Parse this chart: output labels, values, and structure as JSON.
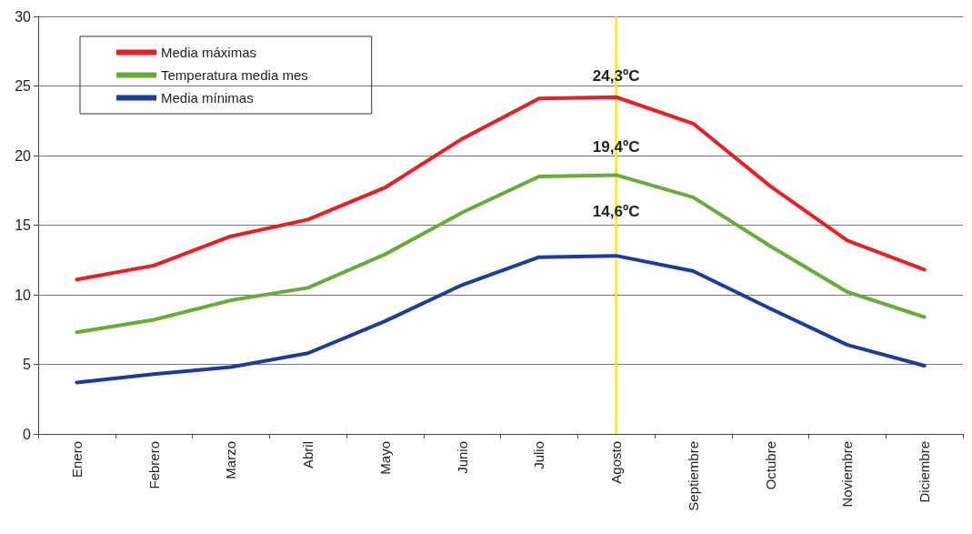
{
  "chart_data": {
    "type": "line",
    "categories": [
      "Enero",
      "Febrero",
      "Marzo",
      "Abril",
      "Mayo",
      "Junio",
      "Julio",
      "Agosto",
      "Septiembre",
      "Octubre",
      "Noviembre",
      "Diciembre"
    ],
    "series": [
      {
        "name": "Media máximas",
        "color": "#ee1c25",
        "values": [
          11.1,
          12.1,
          14.2,
          15.4,
          17.7,
          21.2,
          24.1,
          24.2,
          22.3,
          17.8,
          13.9,
          11.8
        ]
      },
      {
        "name": "Temperatura media mes",
        "color": "#6aaa3a",
        "values": [
          7.3,
          8.2,
          9.6,
          10.5,
          12.9,
          15.9,
          18.5,
          18.6,
          17.0,
          13.5,
          10.2,
          8.4
        ]
      },
      {
        "name": "Media mínimas",
        "color": "#1f3a9e",
        "values": [
          3.7,
          4.3,
          4.8,
          5.8,
          8.1,
          10.7,
          12.7,
          12.8,
          11.7,
          9.0,
          6.4,
          4.9
        ]
      }
    ],
    "ylim": [
      0,
      30
    ],
    "yticks": [
      0,
      5,
      10,
      15,
      20,
      25,
      30
    ],
    "grid": "y",
    "legend": "top left",
    "marker": "none",
    "line_style": "solid",
    "ref_lines": [
      {
        "axis": "x",
        "value": "Agosto",
        "label": null,
        "color": "#f2ee1a"
      }
    ],
    "annotations": [
      {
        "text": "24,3ºC",
        "x": "Agosto",
        "y": 25.7
      },
      {
        "text": "19,4ºC",
        "x": "Agosto",
        "y": 20.6
      },
      {
        "text": "14,6ºC",
        "x": "Agosto",
        "y": 16.0
      }
    ]
  }
}
